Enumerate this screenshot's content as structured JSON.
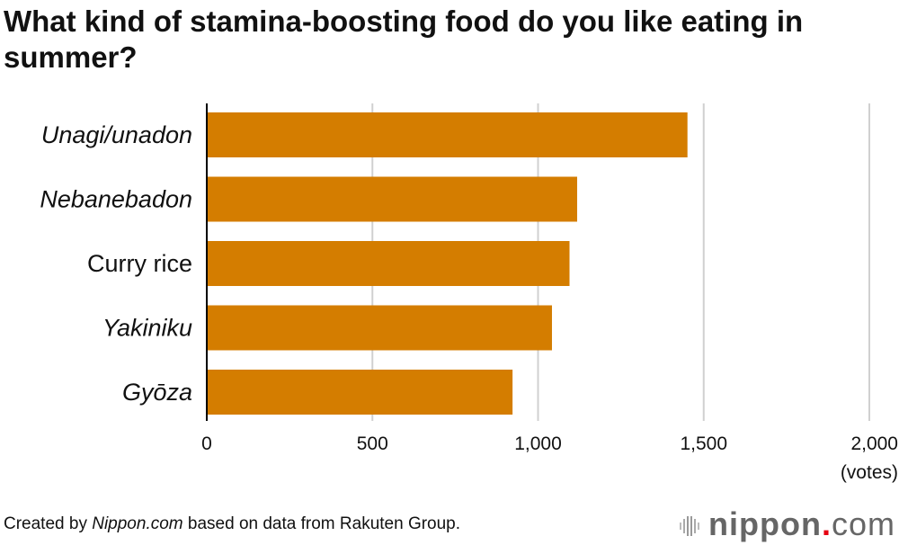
{
  "footer": {
    "prefix": "Created by ",
    "source_name": "Nippon.com",
    "suffix": " based on data from Rakuten Group."
  },
  "logo": {
    "text": "nippon.com",
    "name": "nippon",
    "dot": ".",
    "tld": "com"
  },
  "colors": {
    "bar": "#D47D00",
    "grid": "#D0D0D0",
    "axis": "#000000"
  },
  "chart_data": {
    "type": "bar",
    "orientation": "horizontal",
    "title": "What kind of stamina-boosting food do you like eating in summer?",
    "categories": [
      "Unagi/unadon",
      "Nebanebadon",
      "Curry rice",
      "Yakiniku",
      "Gyōza"
    ],
    "category_italic": [
      true,
      true,
      false,
      true,
      true
    ],
    "values": [
      1451,
      1118,
      1095,
      1042,
      923
    ],
    "xlabel": "(votes)",
    "ylabel": "",
    "xlim": [
      0,
      2000
    ],
    "xticks": [
      0,
      500,
      1000,
      1500,
      2000
    ],
    "xtick_labels": [
      "0",
      "500",
      "1,000",
      "1,500",
      "2,000"
    ],
    "grid": true,
    "legend": "none"
  }
}
